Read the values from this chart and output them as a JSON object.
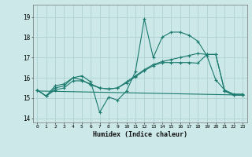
{
  "xlabel": "Humidex (Indice chaleur)",
  "bg_color": "#cce8e8",
  "line_color": "#1a7a6e",
  "grid_color": "#aacece",
  "xlim": [
    -0.5,
    23.5
  ],
  "ylim": [
    13.8,
    19.6
  ],
  "yticks": [
    14,
    15,
    16,
    17,
    18,
    19
  ],
  "xticks": [
    0,
    1,
    2,
    3,
    4,
    5,
    6,
    7,
    8,
    9,
    10,
    11,
    12,
    13,
    14,
    15,
    16,
    17,
    18,
    19,
    20,
    21,
    22,
    23
  ],
  "line1_x": [
    0,
    1,
    2,
    3,
    4,
    5,
    6,
    7,
    8,
    9,
    10,
    11,
    12,
    13,
    14,
    15,
    16,
    17,
    18,
    19,
    20,
    21,
    22,
    23
  ],
  "line1_y": [
    15.4,
    15.1,
    15.6,
    15.7,
    16.0,
    16.1,
    15.8,
    14.3,
    15.05,
    14.9,
    15.35,
    16.3,
    18.9,
    17.0,
    18.0,
    18.25,
    18.25,
    18.1,
    17.8,
    17.1,
    15.9,
    15.4,
    15.2,
    15.2
  ],
  "line2_x": [
    0,
    1,
    2,
    3,
    4,
    5,
    6,
    7,
    8,
    9,
    10,
    11,
    12,
    13,
    14,
    15,
    16,
    17,
    18,
    19,
    20,
    21,
    22,
    23
  ],
  "line2_y": [
    15.4,
    15.1,
    15.4,
    15.5,
    15.85,
    15.85,
    15.7,
    15.5,
    15.45,
    15.5,
    15.75,
    16.05,
    16.35,
    16.6,
    16.75,
    16.75,
    16.75,
    16.75,
    16.72,
    17.15,
    17.15,
    15.35,
    15.15,
    15.15
  ],
  "line3_x": [
    0,
    1,
    2,
    3,
    4,
    5,
    6,
    7,
    8,
    9,
    10,
    11,
    12,
    13,
    14,
    15,
    16,
    17,
    18,
    19,
    20,
    21,
    22,
    23
  ],
  "line3_y": [
    15.4,
    15.1,
    15.5,
    15.6,
    16.0,
    15.9,
    15.65,
    15.5,
    15.45,
    15.5,
    15.8,
    16.1,
    16.4,
    16.65,
    16.8,
    16.9,
    17.0,
    17.1,
    17.2,
    17.15,
    17.15,
    15.35,
    15.15,
    15.15
  ],
  "line4_x": [
    0,
    23
  ],
  "line4_y": [
    15.35,
    15.15
  ]
}
